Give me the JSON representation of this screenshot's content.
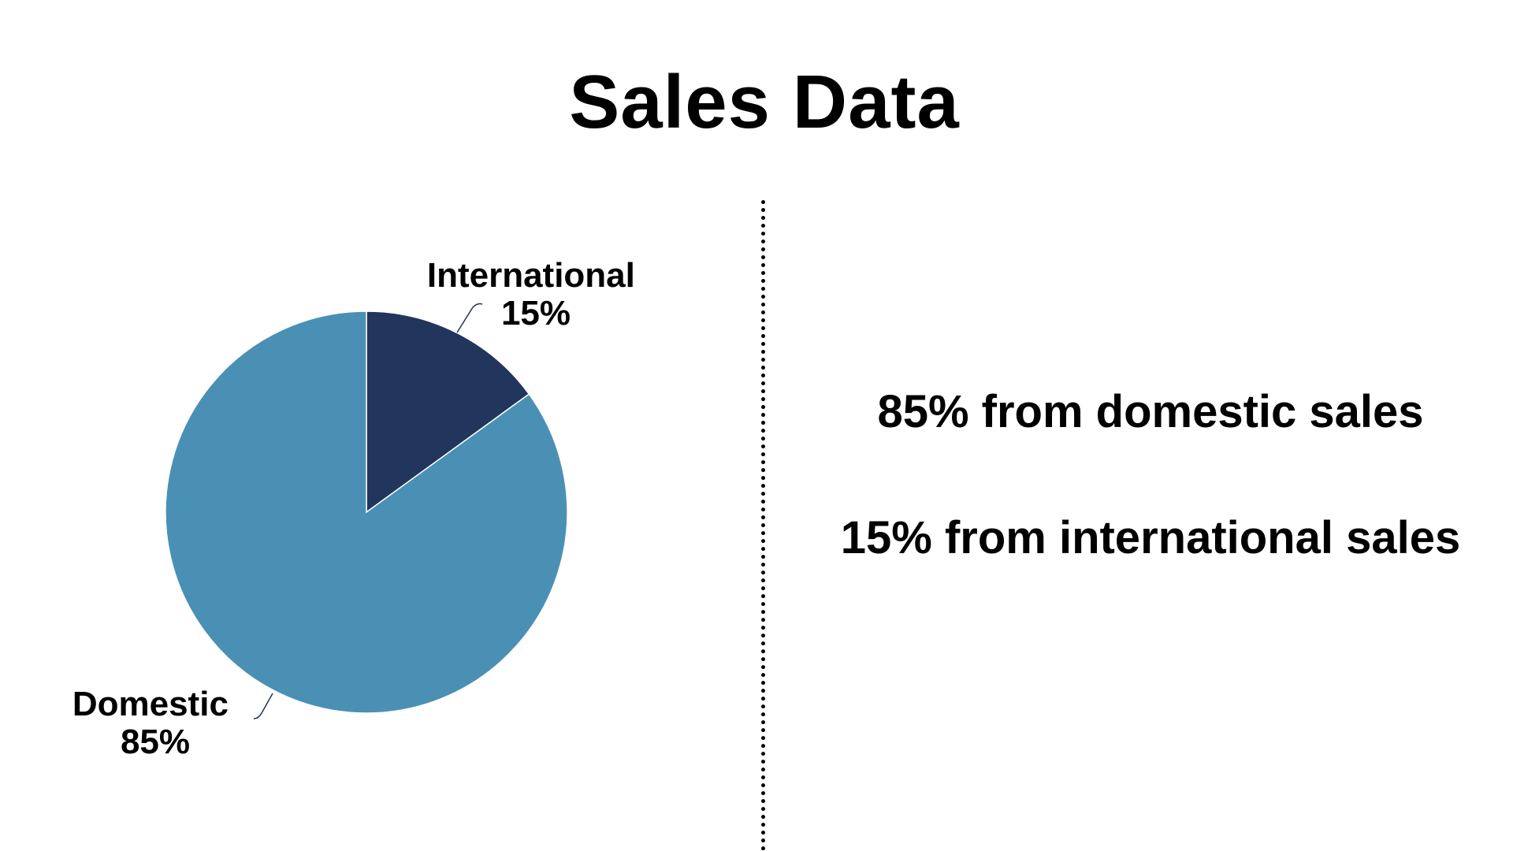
{
  "chart_data": {
    "type": "pie",
    "title": "Sales Data",
    "categories": [
      "International",
      "Domestic"
    ],
    "values": [
      15,
      85
    ],
    "value_labels": [
      "15%",
      "85%"
    ],
    "colors": [
      "#22355c",
      "#4a90b5"
    ],
    "start_angle": "12 o'clock",
    "direction": "clockwise",
    "legend": "none",
    "grid": false
  },
  "statements": [
    "85% from domestic sales",
    "15% from international sales"
  ]
}
